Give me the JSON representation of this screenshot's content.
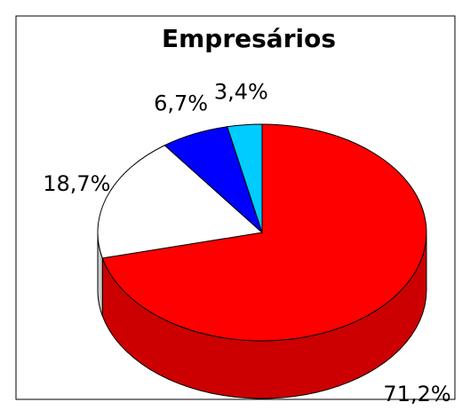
{
  "chart_data": {
    "type": "pie",
    "title": "Empresários",
    "values": [
      71.2,
      18.7,
      6.7,
      3.4
    ],
    "value_labels": [
      "71,2%",
      "18,7%",
      "6,7%",
      "3,4%"
    ],
    "colors": [
      "#ff0000",
      "#ffffff",
      "#0000ff",
      "#00ccff"
    ],
    "start_angle": 0,
    "direction": "clockwise",
    "three_d": true
  }
}
